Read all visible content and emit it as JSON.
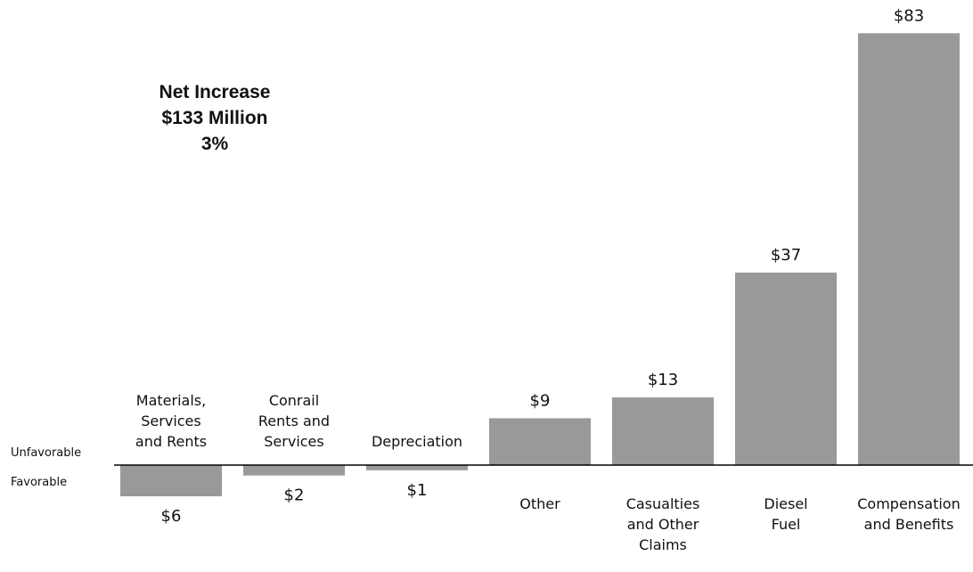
{
  "chart_data": {
    "type": "bar",
    "categories": [
      [
        "Materials,",
        "Services",
        "and Rents"
      ],
      [
        "Conrail",
        "Rents and",
        "Services"
      ],
      [
        "Depreciation"
      ],
      [
        "Other"
      ],
      [
        "Casualties",
        "and Other",
        "Claims"
      ],
      [
        "Diesel",
        "Fuel"
      ],
      [
        "Compensation",
        "and Benefits"
      ]
    ],
    "values": [
      -6,
      -2,
      -1,
      9,
      13,
      37,
      83
    ],
    "value_labels": [
      "$6",
      "$2",
      "$1",
      "$9",
      "$13",
      "$37",
      "$83"
    ],
    "baseline_labels": {
      "above": "Unfavorable",
      "below": "Favorable"
    },
    "annotation": [
      "Net Increase",
      "$133 Million",
      "3%"
    ],
    "bar_color": "#999999",
    "axis_color": "#000000",
    "grid": false
  }
}
